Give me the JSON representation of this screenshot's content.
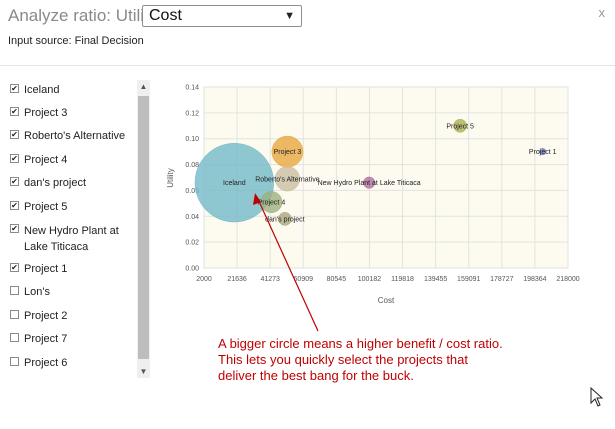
{
  "header": {
    "title": "Analyze ratio: Utility /",
    "ratio_selected": "Cost",
    "close_label": "x",
    "input_source": "Input source: Final Decision"
  },
  "project_list": {
    "items": [
      {
        "label": "Iceland",
        "checked": true,
        "check": "✔"
      },
      {
        "label": "Project 3",
        "checked": true,
        "check": "✔"
      },
      {
        "label": "Roberto's Alternative",
        "checked": true,
        "check": "✔"
      },
      {
        "label": "Project 4",
        "checked": true,
        "check": "✔"
      },
      {
        "label": "dan's project",
        "checked": true,
        "check": "✔"
      },
      {
        "label": "Project 5",
        "checked": true,
        "check": "✔"
      },
      {
        "label": "New Hydro Plant at Lake Titicaca",
        "checked": true,
        "check": "✔"
      },
      {
        "label": "Project 1",
        "checked": true,
        "check": "✔"
      },
      {
        "label": "Lon's",
        "checked": false,
        "check": ""
      },
      {
        "label": "Project 2",
        "checked": false,
        "check": ""
      },
      {
        "label": "Project 7",
        "checked": false,
        "check": ""
      },
      {
        "label": "Project 6",
        "checked": false,
        "check": ""
      }
    ],
    "scroll_up_icon": "triangle-up-icon",
    "scroll_down_icon": "triangle-down-icon"
  },
  "chart_data": {
    "type": "bubble",
    "xlabel": "Cost",
    "ylabel": "Utility",
    "xlim": [
      2000,
      218000
    ],
    "ylim": [
      0,
      0.14
    ],
    "x_ticks": [
      "2000",
      "21636",
      "41273",
      "60909",
      "80545",
      "100182",
      "119818",
      "139455",
      "159091",
      "178727",
      "198364",
      "218000"
    ],
    "y_ticks": [
      "0.00",
      "0.02",
      "0.04",
      "0.06",
      "0.08",
      "0.10",
      "0.12",
      "0.14"
    ],
    "grid": true,
    "points": [
      {
        "name": "Iceland",
        "x": 20000,
        "y": 0.066,
        "size": 48,
        "color": "#6fb8c8"
      },
      {
        "name": "Project 3",
        "x": 51500,
        "y": 0.09,
        "size": 19,
        "color": "#e8a53b"
      },
      {
        "name": "Roberto's Alternative",
        "x": 51500,
        "y": 0.069,
        "size": 15,
        "color": "#c8bea0"
      },
      {
        "name": "Project 4",
        "x": 42000,
        "y": 0.051,
        "size": 13,
        "color": "#9bb07d"
      },
      {
        "name": "dan's project",
        "x": 50000,
        "y": 0.038,
        "size": 8,
        "color": "#a8a77a"
      },
      {
        "name": "Project 5",
        "x": 154000,
        "y": 0.11,
        "size": 8,
        "color": "#a9ae52"
      },
      {
        "name": "New Hydro Plant at Lake Titicaca",
        "x": 100000,
        "y": 0.066,
        "size": 7,
        "color": "#b06a9c"
      },
      {
        "name": "Project 1",
        "x": 203000,
        "y": 0.09,
        "size": 4,
        "color": "#6a78c8"
      }
    ]
  },
  "annotation": {
    "lines": [
      "A bigger circle means a higher benefit / cost ratio.",
      "This lets you quickly select the projects that",
      "deliver the best bang for the buck."
    ],
    "color": "#c00000"
  }
}
